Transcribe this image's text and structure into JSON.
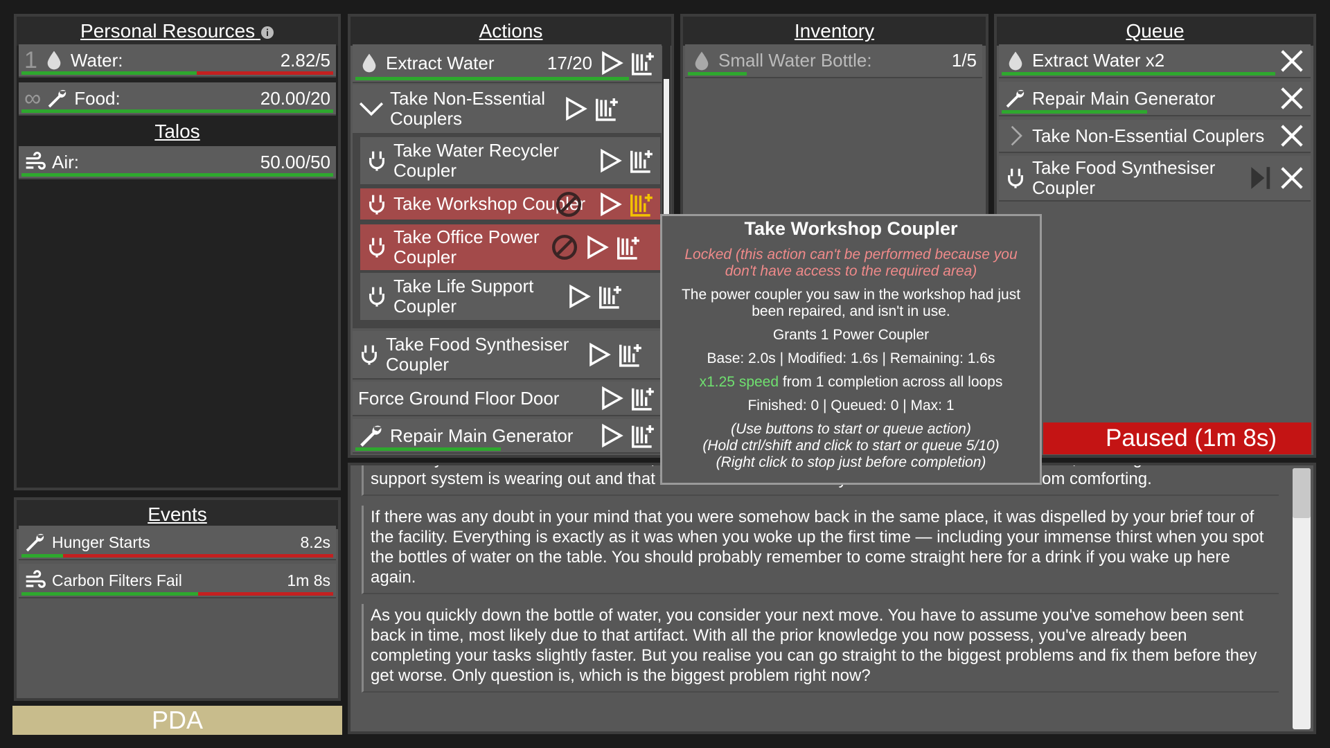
{
  "resources": {
    "title": "Personal Resources",
    "items": [
      {
        "prefix": "1",
        "label": "Water:",
        "value": "2.82/5"
      },
      {
        "prefix": "∞",
        "label": "Food:",
        "value": "20.00/20"
      }
    ],
    "talos": {
      "title": "Talos",
      "items": [
        {
          "label": "Air:",
          "value": "50.00/50"
        }
      ]
    }
  },
  "events": {
    "title": "Events",
    "items": [
      {
        "label": "Hunger Starts",
        "value": "8.2s"
      },
      {
        "label": "Carbon Filters Fail",
        "value": "1m 8s"
      }
    ]
  },
  "pda": "PDA",
  "actions": {
    "title": "Actions",
    "items": [
      {
        "label": "Extract Water",
        "count": "17/20"
      },
      {
        "label": "Take Non-Essential Couplers"
      },
      {
        "label": "Take Water Recycler Coupler"
      },
      {
        "label": "Take Workshop Coupler"
      },
      {
        "label": "Take Office Power Coupler"
      },
      {
        "label": "Take Life Support Coupler"
      },
      {
        "label": "Take Food Synthesiser Coupler"
      },
      {
        "label": "Force Ground Floor Door"
      },
      {
        "label": "Repair Main Generator"
      }
    ]
  },
  "inventory": {
    "title": "Inventory",
    "items": [
      {
        "label": "Small Water Bottle:",
        "value": "1/5"
      }
    ]
  },
  "queue": {
    "title": "Queue",
    "items": [
      "Extract Water x2",
      "Repair Main Generator",
      "Take Non-Essential Couplers",
      "Take Food Synthesiser Coupler"
    ],
    "status": "Paused (1m 8s)"
  },
  "tooltip": {
    "title": "Take Workshop Coupler",
    "locked": "Locked (this action can't be performed because you don't have access to the required area)",
    "description": "The power coupler you saw in the workshop had just been repaired, and isn't in use.",
    "grants": "Grants 1 Power Coupler",
    "timing": "Base: 2.0s | Modified: 1.6s | Remaining: 1.6s",
    "speed": "x1.25 speed",
    "speed_note": "from 1 completion across all loops",
    "counts": "Finished: 0 | Queued: 0 | Max: 1",
    "hints": [
      "(Use buttons to start or queue action)",
      "(Hold ctrl/shift and click to start or queue 5/10)",
      "(Right click to stop just before completion)"
    ]
  },
  "story": [
    "Relatively warm but stale air rushes in, bringing with it a variety of unpleasant smells. Somehow, knowing that the life support system is wearing out and that this'll be the freshest air you taste for a while is far from comforting.",
    "If there was any doubt in your mind that you were somehow back in the same place, it was dispelled by your brief tour of the facility. Everything is exactly as it was when you woke up the first time — including your immense thirst when you spot the bottles of water on the table. You should probably remember to come straight here for a drink if you wake up here again.",
    "As you quickly down the bottle of water, you consider your next move. You have to assume you've somehow been sent back in time, most likely due to that artifact. With all the prior knowledge you now possess, you've already been completing your tasks slightly faster. But you realise you can go straight to the biggest problems and fix them before they get worse. Only question is, which is the biggest problem right now?"
  ]
}
